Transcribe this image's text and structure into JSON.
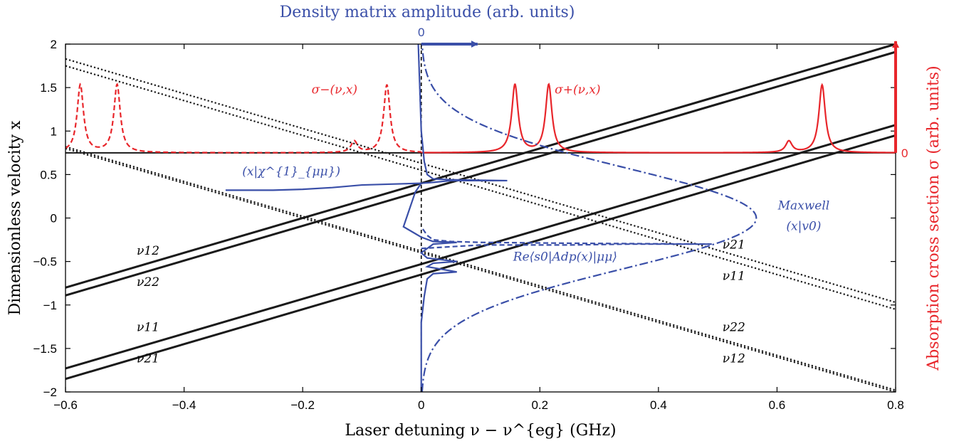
{
  "chart_data": {
    "type": "line",
    "title": "Density matrix amplitude (arb. units)",
    "xlabel": "Laser detuning ν − ν^{eg} (GHz)",
    "ylabel": "Dimensionless velocity x",
    "y2label": "Absorption cross section σ (arb. units)",
    "xlim": [
      -0.6,
      0.8
    ],
    "ylim": [
      -2,
      2
    ],
    "xticks": [
      "−0.6",
      "−0.4",
      "−0.2",
      "0",
      "0.2",
      "0.4",
      "0.6",
      "0.8"
    ],
    "yticks": [
      "−2",
      "−1.5",
      "−1",
      "−0.5",
      "0",
      "0.5",
      "1",
      "1.5",
      "2"
    ],
    "grid": false,
    "colors": {
      "resonance": "#1a1a1a",
      "sigma": "#e8262b",
      "density": "#3a4fa8"
    },
    "zero_markers": {
      "top": "0",
      "right": "0"
    },
    "sigma_baseline_y": 0.75,
    "resonance_lines": [
      {
        "style": "solid",
        "slope": 2.0,
        "intercept": 0.4,
        "label": "ν12"
      },
      {
        "style": "solid",
        "slope": 2.0,
        "intercept": 0.31,
        "label": "ν22"
      },
      {
        "style": "solid",
        "slope": 2.0,
        "intercept": -0.53,
        "label": "ν11"
      },
      {
        "style": "solid",
        "slope": 2.0,
        "intercept": -0.65,
        "label": "ν21"
      },
      {
        "style": "dotted",
        "slope": -2.0,
        "intercept": 0.63,
        "label": "ν21"
      },
      {
        "style": "dotted",
        "slope": -2.0,
        "intercept": 0.55,
        "label": "ν11"
      },
      {
        "style": "dotted",
        "slope": -2.0,
        "intercept": -0.38,
        "label": "ν22"
      },
      {
        "style": "dotted",
        "slope": -2.0,
        "intercept": -0.4,
        "label": "ν12"
      }
    ],
    "sigma_minus": {
      "name": "σ−(ν,x)",
      "style": "dashed",
      "peaks": [
        {
          "x": -0.575,
          "height": 0.78
        },
        {
          "x": -0.513,
          "height": 0.78
        },
        {
          "x": -0.113,
          "height": 0.13
        },
        {
          "x": -0.058,
          "height": 0.78
        }
      ]
    },
    "sigma_plus": {
      "name": "σ+(ν,x)",
      "style": "solid",
      "peaks": [
        {
          "x": 0.158,
          "height": 0.78
        },
        {
          "x": 0.215,
          "height": 0.78
        },
        {
          "x": 0.62,
          "height": 0.13
        },
        {
          "x": 0.676,
          "height": 0.78
        }
      ]
    },
    "maxwell": {
      "name": "Maxwell (x|v0)",
      "style": "dashdot",
      "peak_amplitude": 0.565,
      "width": 0.58
    },
    "chi_curve": {
      "name": "(x|χ^{1}_{μμ})",
      "style": "solid",
      "points": [
        [
          -0.33,
          0.32
        ],
        [
          -0.25,
          0.32
        ],
        [
          -0.2,
          0.33
        ],
        [
          -0.15,
          0.35
        ],
        [
          -0.1,
          0.38
        ],
        [
          -0.05,
          0.39
        ],
        [
          0.0,
          0.4
        ],
        [
          0.02,
          0.41
        ],
        [
          0.05,
          0.43
        ],
        [
          0.145,
          0.43
        ],
        [
          0.05,
          0.44
        ],
        [
          0.02,
          0.45
        ],
        [
          0.01,
          0.5
        ],
        [
          0.005,
          0.65
        ],
        [
          0.0,
          1.0
        ],
        [
          -0.003,
          1.6
        ],
        [
          -0.005,
          2.0
        ]
      ]
    },
    "re_curve": {
      "name": "Re⟨s0|Adp(x)|μμ⟩",
      "style": "dashed",
      "points": [
        [
          0.0,
          -0.35
        ],
        [
          0.1,
          -0.31
        ],
        [
          0.25,
          -0.31
        ],
        [
          0.35,
          -0.3
        ],
        [
          0.49,
          -0.3
        ],
        [
          0.25,
          -0.29
        ],
        [
          0.1,
          -0.28
        ],
        [
          0.05,
          -0.27
        ],
        [
          0.02,
          -0.25
        ],
        [
          0.01,
          -0.2
        ],
        [
          0.0,
          -0.1
        ]
      ]
    },
    "left_curve": {
      "style": "solid",
      "points": [
        [
          0.0,
          0.4
        ],
        [
          -0.01,
          0.3
        ],
        [
          -0.02,
          0.1
        ],
        [
          -0.03,
          -0.1
        ],
        [
          -0.01,
          -0.18
        ],
        [
          0.0,
          -0.22
        ],
        [
          0.02,
          -0.27
        ],
        [
          0.06,
          -0.28
        ],
        [
          0.02,
          -0.3
        ],
        [
          0.0,
          -0.4
        ],
        [
          0.01,
          -0.46
        ],
        [
          0.06,
          -0.5
        ],
        [
          0.02,
          -0.52
        ],
        [
          0.01,
          -0.56
        ],
        [
          0.06,
          -0.62
        ],
        [
          0.02,
          -0.64
        ],
        [
          0.01,
          -0.7
        ],
        [
          0.005,
          -0.9
        ],
        [
          0.0,
          -1.2
        ],
        [
          0.0,
          -2.0
        ]
      ]
    }
  }
}
